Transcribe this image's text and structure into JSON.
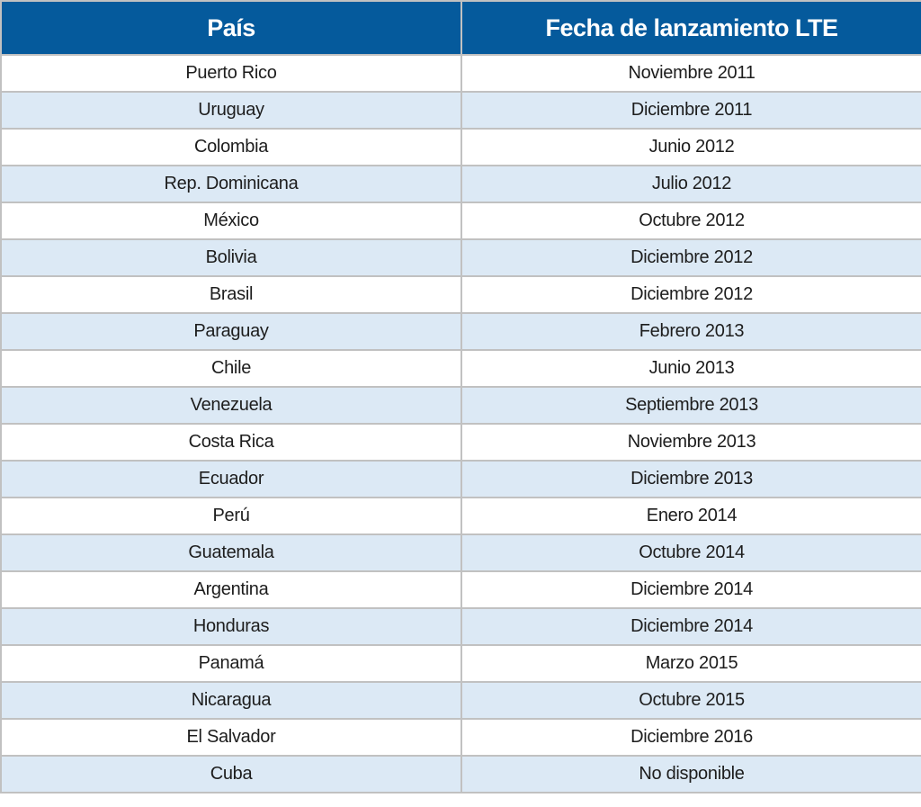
{
  "colors": {
    "header_bg": "#055A9C",
    "header_text": "#FFFFFF",
    "row_bg": "#FFFFFF",
    "row_alt_bg": "#DCE9F5",
    "border": "#C1C1C1",
    "body_text": "#1D1D1D"
  },
  "table": {
    "columns": [
      {
        "label": "País"
      },
      {
        "label": "Fecha de lanzamiento LTE"
      }
    ],
    "rows": [
      {
        "country": "Puerto Rico",
        "launch_date": "Noviembre 2011"
      },
      {
        "country": "Uruguay",
        "launch_date": "Diciembre 2011"
      },
      {
        "country": "Colombia",
        "launch_date": "Junio 2012"
      },
      {
        "country": "Rep. Dominicana",
        "launch_date": "Julio 2012"
      },
      {
        "country": "México",
        "launch_date": "Octubre 2012"
      },
      {
        "country": "Bolivia",
        "launch_date": "Diciembre 2012"
      },
      {
        "country": "Brasil",
        "launch_date": "Diciembre 2012"
      },
      {
        "country": "Paraguay",
        "launch_date": "Febrero 2013"
      },
      {
        "country": "Chile",
        "launch_date": "Junio 2013"
      },
      {
        "country": "Venezuela",
        "launch_date": "Septiembre 2013"
      },
      {
        "country": "Costa Rica",
        "launch_date": "Noviembre 2013"
      },
      {
        "country": "Ecuador",
        "launch_date": "Diciembre 2013"
      },
      {
        "country": "Perú",
        "launch_date": "Enero 2014"
      },
      {
        "country": "Guatemala",
        "launch_date": "Octubre 2014"
      },
      {
        "country": "Argentina",
        "launch_date": "Diciembre 2014"
      },
      {
        "country": "Honduras",
        "launch_date": "Diciembre 2014"
      },
      {
        "country": "Panamá",
        "launch_date": "Marzo 2015"
      },
      {
        "country": "Nicaragua",
        "launch_date": "Octubre 2015"
      },
      {
        "country": "El Salvador",
        "launch_date": "Diciembre 2016"
      },
      {
        "country": "Cuba",
        "launch_date": "No disponible"
      }
    ]
  },
  "chart_data": {
    "type": "table",
    "columns": [
      "País",
      "Fecha de lanzamiento LTE"
    ],
    "rows": [
      [
        "Puerto Rico",
        "Noviembre 2011"
      ],
      [
        "Uruguay",
        "Diciembre 2011"
      ],
      [
        "Colombia",
        "Junio 2012"
      ],
      [
        "Rep. Dominicana",
        "Julio 2012"
      ],
      [
        "México",
        "Octubre 2012"
      ],
      [
        "Bolivia",
        "Diciembre 2012"
      ],
      [
        "Brasil",
        "Diciembre 2012"
      ],
      [
        "Paraguay",
        "Febrero 2013"
      ],
      [
        "Chile",
        "Junio 2013"
      ],
      [
        "Venezuela",
        "Septiembre 2013"
      ],
      [
        "Costa Rica",
        "Noviembre 2013"
      ],
      [
        "Ecuador",
        "Diciembre 2013"
      ],
      [
        "Perú",
        "Enero 2014"
      ],
      [
        "Guatemala",
        "Octubre 2014"
      ],
      [
        "Argentina",
        "Diciembre 2014"
      ],
      [
        "Honduras",
        "Diciembre 2014"
      ],
      [
        "Panamá",
        "Marzo 2015"
      ],
      [
        "Nicaragua",
        "Octubre 2015"
      ],
      [
        "El Salvador",
        "Diciembre 2016"
      ],
      [
        "Cuba",
        "No disponible"
      ]
    ],
    "layout": {
      "header_background": "#055A9C",
      "alternating_row_background": "#DCE9F5",
      "grid": true
    }
  }
}
